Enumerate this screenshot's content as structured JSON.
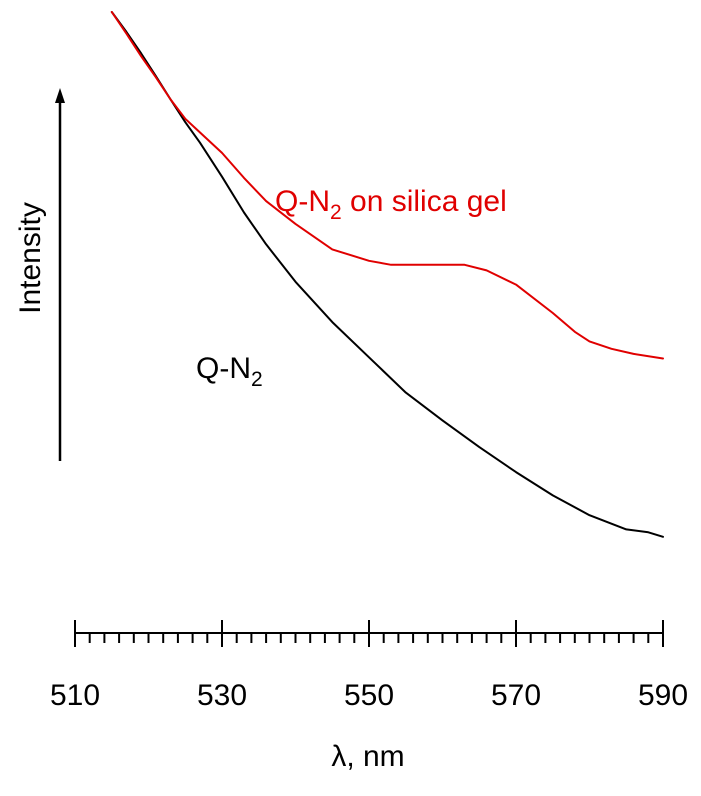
{
  "chart_data": {
    "type": "line",
    "title": "",
    "xlabel": "λ, nm",
    "ylabel": "Intensity",
    "xlim": [
      510,
      590
    ],
    "ylim": [
      0,
      1
    ],
    "grid": false,
    "x_ticks_major": [
      510,
      530,
      550,
      570,
      590
    ],
    "x_tick_minor_step": 2,
    "y_axis_style": "arrow",
    "series": [
      {
        "name": "Q-N₂",
        "color": "#000000",
        "label_parts": {
          "base": "Q-N",
          "sub": "2",
          "rest": ""
        },
        "x": [
          515,
          517,
          519,
          521,
          523,
          525,
          527,
          530,
          533,
          536,
          540,
          545,
          550,
          555,
          560,
          565,
          570,
          575,
          580,
          585,
          588,
          590
        ],
        "y": [
          1.0,
          0.965,
          0.927,
          0.887,
          0.846,
          0.806,
          0.77,
          0.71,
          0.647,
          0.591,
          0.525,
          0.454,
          0.392,
          0.33,
          0.281,
          0.234,
          0.19,
          0.149,
          0.114,
          0.089,
          0.084,
          0.076
        ]
      },
      {
        "name": "Q-N₂ on silica gel",
        "color": "#e00000",
        "label_parts": {
          "base": "Q-N",
          "sub": "2",
          "rest": " on silica gel"
        },
        "x": [
          515,
          517,
          519,
          521,
          523,
          525,
          527,
          530,
          533,
          536,
          540,
          545,
          550,
          553,
          556,
          560,
          563,
          566,
          570,
          575,
          578,
          580,
          583,
          586,
          590
        ],
        "y": [
          1.0,
          0.962,
          0.922,
          0.885,
          0.846,
          0.812,
          0.788,
          0.752,
          0.708,
          0.667,
          0.627,
          0.582,
          0.562,
          0.555,
          0.555,
          0.555,
          0.555,
          0.545,
          0.52,
          0.47,
          0.437,
          0.42,
          0.407,
          0.398,
          0.39
        ]
      }
    ]
  }
}
